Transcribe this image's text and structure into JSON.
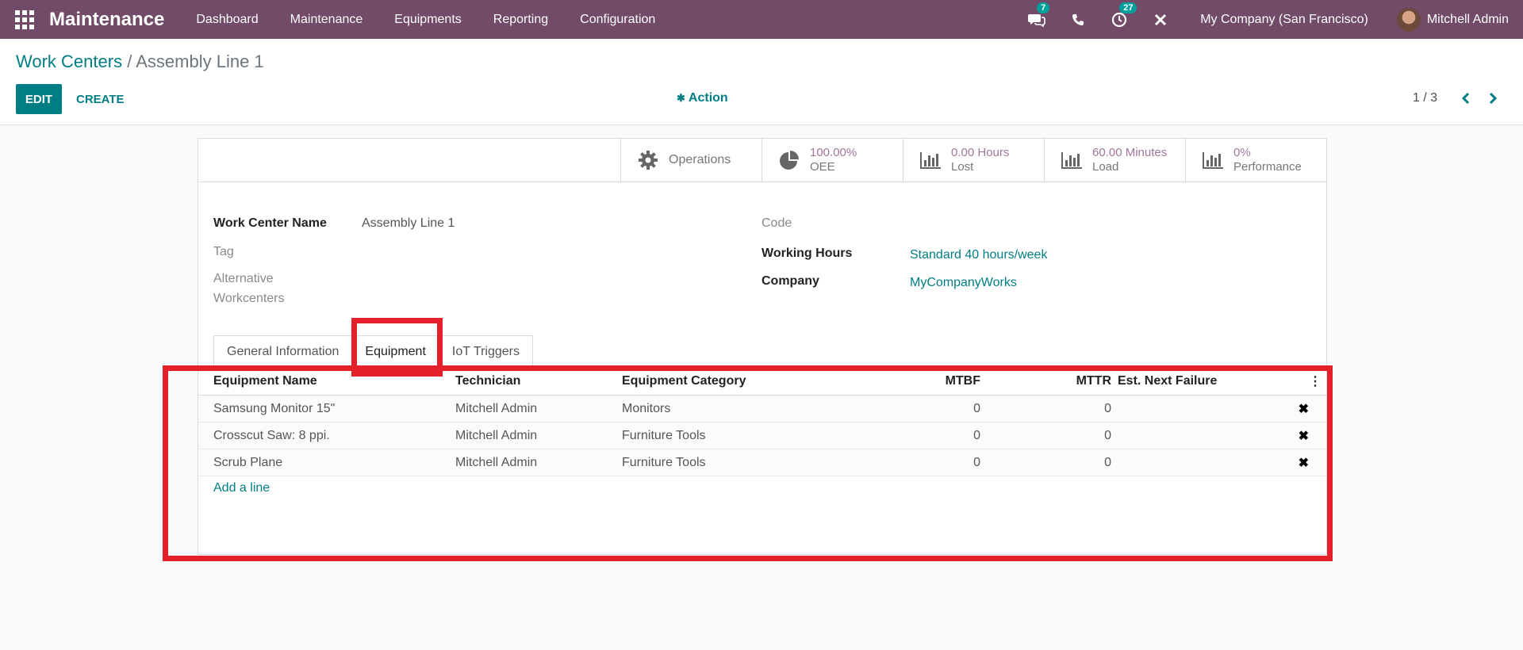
{
  "navbar": {
    "app_name": "Maintenance",
    "menu": [
      "Dashboard",
      "Maintenance",
      "Equipments",
      "Reporting",
      "Configuration"
    ],
    "messages_count": "7",
    "activities_count": "27",
    "company": "My Company (San Francisco)",
    "user": "Mitchell Admin",
    "color": "#714b67"
  },
  "breadcrumb": {
    "parent": "Work Centers",
    "separator": "/",
    "current": "Assembly Line 1"
  },
  "toolbar": {
    "edit_label": "EDIT",
    "create_label": "CREATE",
    "action_label": "Action",
    "pager": "1 / 3"
  },
  "stat_buttons": {
    "operations": "Operations",
    "oee_value": "100.00%",
    "oee_label": "OEE",
    "lost_value": "0.00 Hours",
    "lost_label": "Lost",
    "load_value": "60.00 Minutes",
    "load_label": "Load",
    "perf_value": "0%",
    "perf_label": "Performance"
  },
  "form": {
    "work_center_name_label": "Work Center Name",
    "work_center_name": "Assembly Line 1",
    "tag_label": "Tag",
    "alt_label_1": "Alternative",
    "alt_label_2": "Workcenters",
    "code_label": "Code",
    "working_hours_label": "Working Hours",
    "working_hours": "Standard 40 hours/week",
    "company_label": "Company",
    "company": "MyCompanyWorks"
  },
  "tabs": [
    "General Information",
    "Equipment",
    "IoT Triggers"
  ],
  "active_tab": "Equipment",
  "table": {
    "headers": [
      "Equipment Name",
      "Technician",
      "Equipment Category",
      "MTBF",
      "MTTR",
      "Est. Next Failure"
    ],
    "rows": [
      {
        "name": "Samsung Monitor 15\"",
        "technician": "Mitchell Admin",
        "category": "Monitors",
        "mtbf": "0",
        "mttr": "0",
        "next": ""
      },
      {
        "name": "Crosscut Saw: 8 ppi.",
        "technician": "Mitchell Admin",
        "category": "Furniture Tools",
        "mtbf": "0",
        "mttr": "0",
        "next": ""
      },
      {
        "name": "Scrub Plane",
        "technician": "Mitchell Admin",
        "category": "Furniture Tools",
        "mtbf": "0",
        "mttr": "0",
        "next": ""
      }
    ],
    "add_line": "Add a line"
  },
  "colors": {
    "accent": "#017e84",
    "highlight": "#e4212b"
  }
}
